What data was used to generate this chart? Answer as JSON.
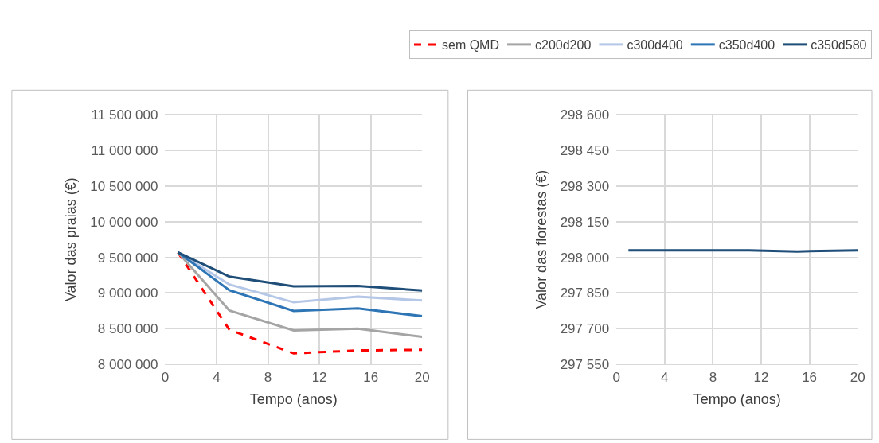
{
  "chart_data": [
    {
      "type": "line",
      "xlabel": "Tempo (anos)",
      "ylabel": "Valor das praias (€)",
      "x": [
        1,
        5,
        10,
        15,
        20
      ],
      "xlim": [
        0,
        20
      ],
      "xticks": [
        0,
        4,
        8,
        12,
        16,
        20
      ],
      "ylim": [
        8000000,
        11500000
      ],
      "yticks": [
        {
          "value": 8000000,
          "label": "8 000 000"
        },
        {
          "value": 8500000,
          "label": "8 500 000"
        },
        {
          "value": 9000000,
          "label": "9 000 000"
        },
        {
          "value": 9500000,
          "label": "9 500 000"
        },
        {
          "value": 10000000,
          "label": "10 000 000"
        },
        {
          "value": 10500000,
          "label": "10 500 000"
        },
        {
          "value": 11000000,
          "label": "11 000 000"
        },
        {
          "value": 11500000,
          "label": "11 500 000"
        }
      ],
      "grid": true,
      "legend": "top right",
      "series": [
        {
          "name": "sem QMD",
          "color": "#ff0000",
          "line_style": "dashed",
          "values": [
            9570000,
            8485000,
            8155000,
            8195000,
            8205000
          ]
        },
        {
          "name": "c200d200",
          "color": "#a5a5a5",
          "values": [
            9570000,
            8755000,
            8475000,
            8500000,
            8385000
          ]
        },
        {
          "name": "c300d400",
          "color": "#b4c7e7",
          "values": [
            9570000,
            9120000,
            8870000,
            8950000,
            8895000
          ]
        },
        {
          "name": "c350d400",
          "color": "#2e75b6",
          "values": [
            9570000,
            9040000,
            8750000,
            8785000,
            8675000
          ]
        },
        {
          "name": "c350d580",
          "color": "#1f4e79",
          "values": [
            9570000,
            9230000,
            9095000,
            9100000,
            9035000
          ]
        }
      ]
    },
    {
      "type": "line",
      "xlabel": "Tempo (anos)",
      "ylabel": "Valor das florestas (€)",
      "x": [
        1,
        5,
        10,
        11,
        15,
        20
      ],
      "xlim": [
        0,
        20
      ],
      "xticks": [
        0,
        4,
        8,
        12,
        16,
        20
      ],
      "ylim": [
        297550,
        298600
      ],
      "yticks": [
        {
          "value": 297550,
          "label": "297 550"
        },
        {
          "value": 297700,
          "label": "297 700"
        },
        {
          "value": 297850,
          "label": "297 850"
        },
        {
          "value": 298000,
          "label": "298 000"
        },
        {
          "value": 298150,
          "label": "298 150"
        },
        {
          "value": 298300,
          "label": "298 300"
        },
        {
          "value": 298450,
          "label": "298 450"
        },
        {
          "value": 298600,
          "label": "298 600"
        }
      ],
      "grid": true,
      "series": [
        {
          "color": "#1f4e79",
          "values": [
            298030,
            298030,
            298030,
            298030,
            298025,
            298030
          ]
        }
      ]
    }
  ]
}
